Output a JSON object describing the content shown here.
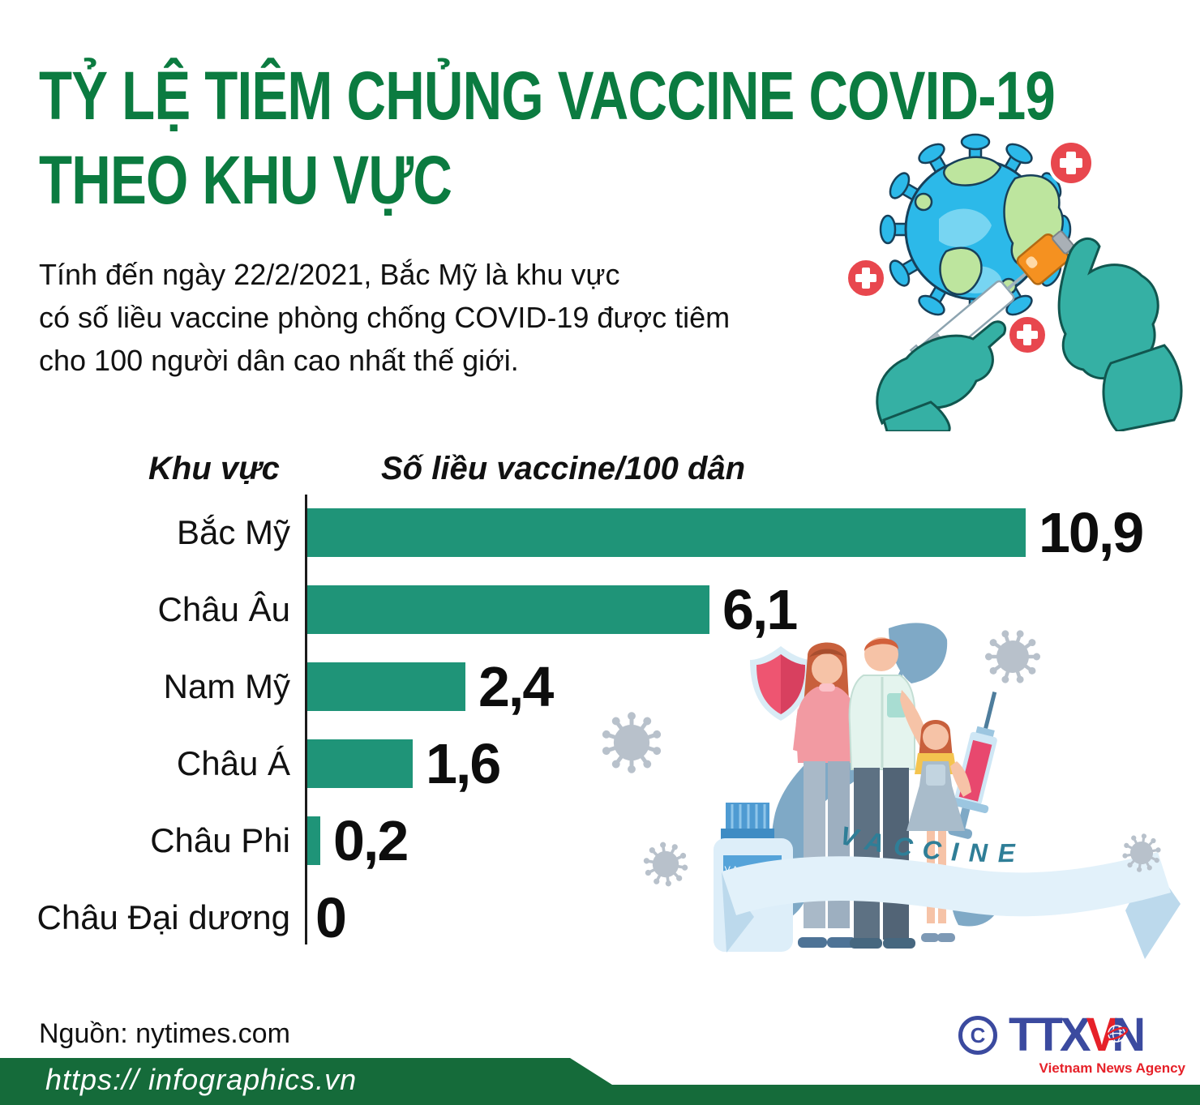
{
  "title": {
    "line1": "TỶ LỆ TIÊM CHỦNG VACCINE COVID-19",
    "line2": "THEO KHU VỰC"
  },
  "subtitle": {
    "lines": [
      "Tính đến ngày 22/2/2021, Bắc Mỹ là khu vực",
      "có số liều vaccine phòng chống COVID-19 được tiêm",
      "cho 100 người dân cao nhất thế giới."
    ]
  },
  "chart_data": {
    "type": "bar",
    "orientation": "horizontal",
    "col_headers": [
      "Khu vực",
      "Số liều vaccine/100 dân"
    ],
    "categories": [
      "Bắc Mỹ",
      "Châu Âu",
      "Nam Mỹ",
      "Châu Á",
      "Châu Phi",
      "Châu Đại dương"
    ],
    "values": [
      10.9,
      6.1,
      2.4,
      1.6,
      0.2,
      0
    ],
    "value_labels": [
      "10,9",
      "6,1",
      "2,4",
      "1,6",
      "0,2",
      "0"
    ],
    "xlim": [
      0,
      10.9
    ],
    "bar_color": "#1f9478",
    "grid": false,
    "legend": false
  },
  "illustrations": {
    "top_right": "virus-globe-with-gloved-hands-and-syringe",
    "bottom_right": "family-with-vaccine-banner-bottle-syringe-shield",
    "banner_text": "VACCINE",
    "bottle_label": "VACCINE"
  },
  "footer": {
    "source": "Nguồn: nytimes.com",
    "url": "https:// infographics.vn"
  },
  "logo": {
    "copyright": "C",
    "ttx": "TTX",
    "v": "V",
    "n": "N",
    "tagline": "Vietnam News Agency"
  },
  "colors": {
    "title_green": "#0b7b40",
    "bar_teal": "#1f9478",
    "footer_green": "#156b3a",
    "logo_blue": "#3b4a9f",
    "logo_red": "#e62129",
    "virus_gray": "#b8c1cb",
    "shield_pink": "#ee5571",
    "ribbon_blue": "#7fa9c6"
  }
}
